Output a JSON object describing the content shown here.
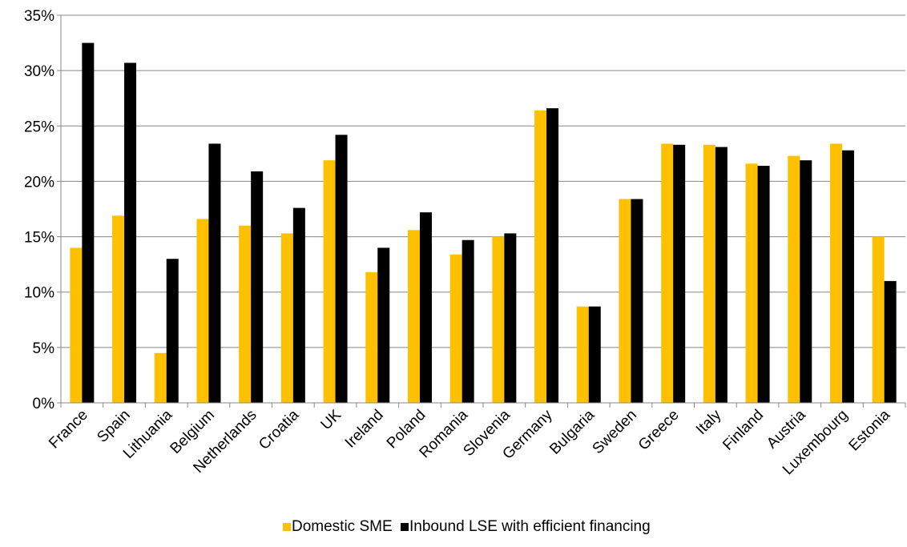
{
  "chart_data": {
    "type": "bar",
    "categories": [
      "France",
      "Spain",
      "Lithuania",
      "Belgium",
      "Netherlands",
      "Croatia",
      "UK",
      "Ireland",
      "Poland",
      "Romania",
      "Slovenia",
      "Germany",
      "Bulgaria",
      "Sweden",
      "Greece",
      "Italy",
      "Finland",
      "Austria",
      "Luxembourg",
      "Estonia"
    ],
    "series": [
      {
        "name": "Domestic SME",
        "color": "#FFC000",
        "values": [
          14.0,
          16.9,
          4.5,
          16.6,
          16.0,
          15.3,
          21.9,
          11.8,
          15.6,
          13.4,
          15.0,
          26.4,
          8.7,
          18.4,
          23.4,
          23.3,
          21.6,
          22.3,
          23.4,
          15.0
        ]
      },
      {
        "name": "Inbound LSE with efficient financing",
        "color": "#000000",
        "values": [
          32.5,
          30.7,
          13.0,
          23.4,
          20.9,
          17.6,
          24.2,
          14.0,
          17.2,
          14.7,
          15.3,
          26.6,
          8.7,
          18.4,
          23.3,
          23.1,
          21.4,
          21.9,
          22.8,
          11.0
        ]
      }
    ],
    "ylim": [
      0,
      35
    ],
    "yticks": [
      0,
      5,
      10,
      15,
      20,
      25,
      30,
      35
    ],
    "ytick_labels": [
      "0%",
      "5%",
      "10%",
      "15%",
      "20%",
      "25%",
      "30%",
      "35%"
    ],
    "grid": true,
    "legend_position": "bottom",
    "title": "",
    "xlabel": "",
    "ylabel": ""
  }
}
